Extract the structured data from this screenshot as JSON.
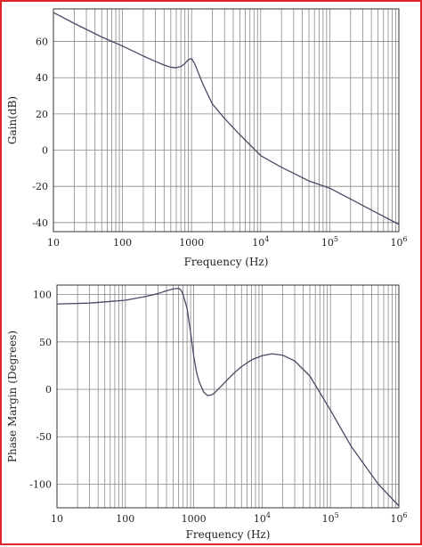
{
  "colors": {
    "frame_border": "#e0262b",
    "curve": "#4a4a66",
    "grid": "#888888",
    "axis": "#333333"
  },
  "chart_data": [
    {
      "type": "line",
      "title": "",
      "xlabel": "Frequency (Hz)",
      "ylabel": "Gain(dB)",
      "xscale": "log",
      "xlim": [
        10,
        1000000
      ],
      "ylim": [
        -45,
        78
      ],
      "grid": true,
      "xticks": [
        {
          "value": 10,
          "base": "10",
          "exp": ""
        },
        {
          "value": 100,
          "base": "100",
          "exp": ""
        },
        {
          "value": 1000,
          "base": "1000",
          "exp": ""
        },
        {
          "value": 10000,
          "base": "10",
          "exp": "4"
        },
        {
          "value": 100000,
          "base": "10",
          "exp": "5"
        },
        {
          "value": 1000000,
          "base": "10",
          "exp": "6"
        }
      ],
      "yticks": [
        -40,
        -20,
        0,
        20,
        40,
        60
      ],
      "series": [
        {
          "x": [
            10,
            20,
            50,
            100,
            200,
            300,
            400,
            500,
            600,
            700,
            800,
            900,
            1000,
            1100,
            1200,
            1400,
            1700,
            2000,
            3000,
            5000,
            10000,
            20000,
            50000,
            100000,
            200000,
            500000,
            1000000
          ],
          "y": [
            76,
            70,
            62.5,
            57.5,
            52,
            49,
            47,
            45.8,
            45.5,
            46.2,
            47.8,
            50,
            50.5,
            48,
            44.5,
            38,
            31,
            25.5,
            17.5,
            8.5,
            -3,
            -9.5,
            -17,
            -21,
            -27,
            -35,
            -41
          ]
        }
      ]
    },
    {
      "type": "line",
      "title": "",
      "xlabel": "Frequency (Hz)",
      "ylabel": "Phase Margin (Degrees)",
      "xscale": "log",
      "xlim": [
        10,
        1000000
      ],
      "ylim": [
        -125,
        110
      ],
      "grid": true,
      "xticks": [
        {
          "value": 10,
          "base": "10",
          "exp": ""
        },
        {
          "value": 100,
          "base": "100",
          "exp": ""
        },
        {
          "value": 1000,
          "base": "1000",
          "exp": ""
        },
        {
          "value": 10000,
          "base": "10",
          "exp": "4"
        },
        {
          "value": 100000,
          "base": "10",
          "exp": "5"
        },
        {
          "value": 1000000,
          "base": "10",
          "exp": "6"
        }
      ],
      "yticks": [
        -100,
        -50,
        0,
        50,
        100
      ],
      "series": [
        {
          "x": [
            10,
            30,
            100,
            200,
            300,
            400,
            500,
            600,
            650,
            700,
            800,
            900,
            1000,
            1100,
            1200,
            1400,
            1600,
            1800,
            2000,
            2500,
            3000,
            4000,
            5000,
            7000,
            10000,
            14000,
            20000,
            30000,
            50000,
            100000,
            200000,
            500000,
            1000000
          ],
          "y": [
            90,
            91,
            94,
            98,
            101,
            104,
            106,
            106.5,
            105,
            100,
            85,
            60,
            35,
            18,
            8,
            -3,
            -6.5,
            -6,
            -4,
            3,
            9,
            18,
            24,
            31,
            35.5,
            37.5,
            36,
            30,
            14,
            -22,
            -60,
            -100,
            -123
          ]
        }
      ]
    }
  ]
}
